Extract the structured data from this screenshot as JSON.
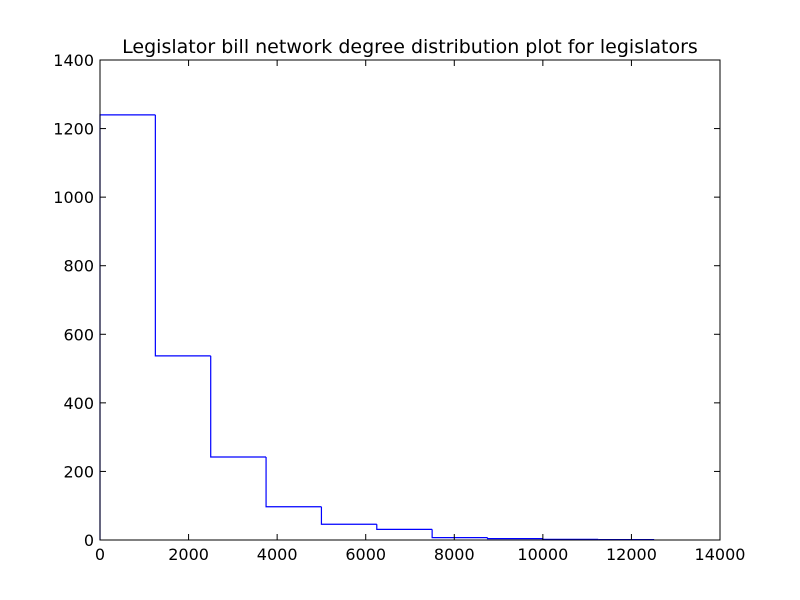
{
  "chart_data": {
    "type": "step-histogram",
    "title": "Legislator bill network degree distribution plot for legislators",
    "xlabel": "",
    "ylabel": "",
    "xlim": [
      0,
      14000
    ],
    "ylim": [
      0,
      1400
    ],
    "x_ticks": [
      "0",
      "2000",
      "4000",
      "6000",
      "8000",
      "10000",
      "12000",
      "14000"
    ],
    "y_ticks": [
      "0",
      "200",
      "400",
      "600",
      "800",
      "1000",
      "1200",
      "1400"
    ],
    "bin_edges": [
      0,
      1250,
      2500,
      3750,
      5000,
      6250,
      7500,
      8750,
      10000,
      11250,
      12500
    ],
    "counts": [
      1240,
      537,
      242,
      97,
      46,
      31,
      7,
      4,
      2,
      1
    ],
    "grid": false,
    "line_color": "#0000ff"
  }
}
